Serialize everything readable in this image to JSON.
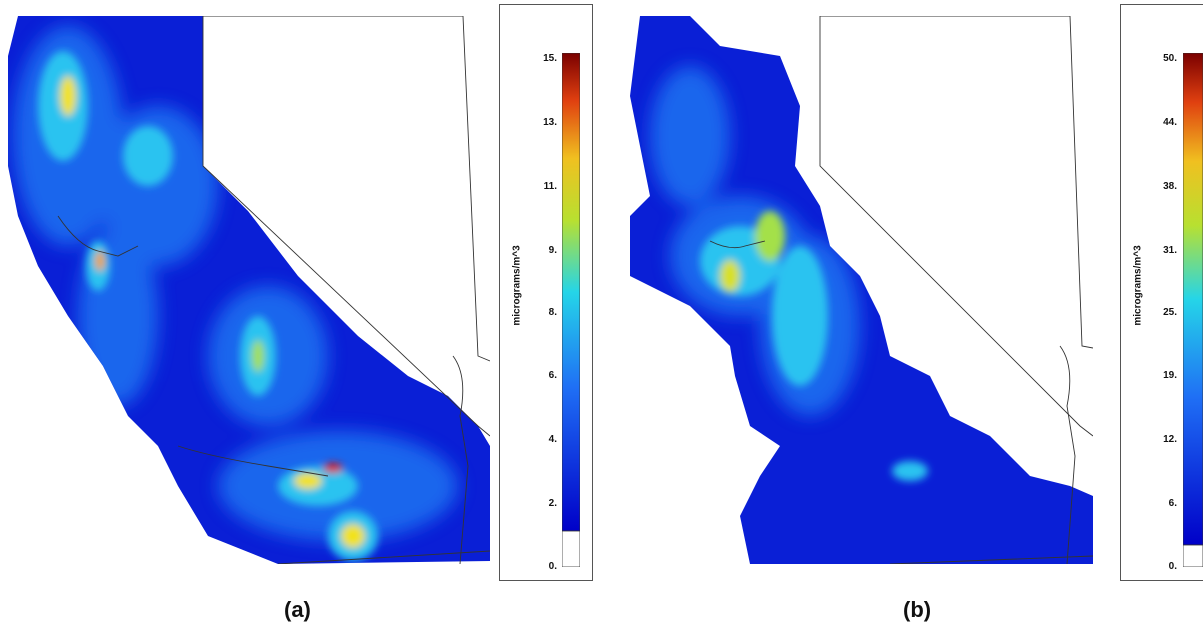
{
  "panels": [
    {
      "label": "(a)",
      "colorbar": {
        "units": "micrograms/m^3",
        "ticks": [
          "15.",
          "13.",
          "11.",
          "9.",
          "8.",
          "6.",
          "4.",
          "2.",
          "0."
        ]
      }
    },
    {
      "label": "(b)",
      "colorbar": {
        "units": "micrograms/m^3",
        "ticks": [
          "50.",
          "44.",
          "38.",
          "31.",
          "25.",
          "19.",
          "12.",
          "6.",
          "0."
        ]
      }
    }
  ],
  "colors": {
    "low": "#0a1fd6",
    "mid": "#29c3f0",
    "high": "#f2e21a",
    "max": "#8b0000",
    "border": "#333333"
  }
}
